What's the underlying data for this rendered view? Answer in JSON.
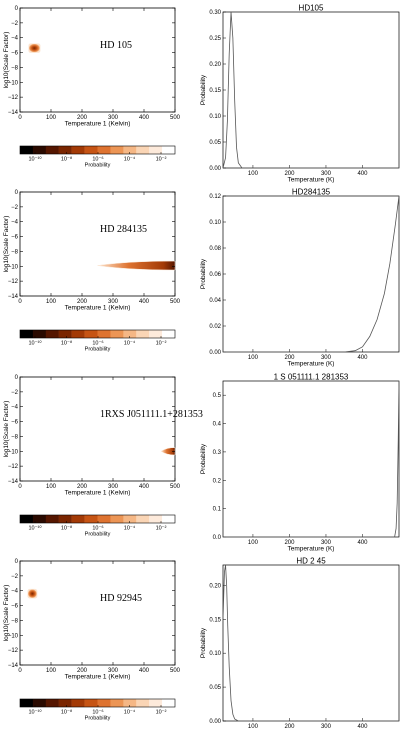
{
  "colorbar": {
    "label": "Probability",
    "ticks": [
      "10⁻¹⁰",
      "10⁻⁸",
      "10⁻⁶",
      "10⁻⁴",
      "10⁻²"
    ],
    "colors": [
      "#000000",
      "#2a0a00",
      "#551600",
      "#7a2500",
      "#a33a06",
      "#c65414",
      "#de7330",
      "#ec9555",
      "#f5b785",
      "#fad5b5",
      "#fdeadb",
      "#ffffff"
    ]
  },
  "chart_data": [
    {
      "type": "heatmap",
      "object_label": "HD 105",
      "xlabel": "Temperature 1 (Kelvin)",
      "ylabel": "log10(Scale Factor)",
      "xlim": [
        0,
        500
      ],
      "ylim": [
        -14,
        0
      ],
      "xticks": [
        0,
        100,
        200,
        300,
        400,
        500
      ],
      "yticks": [
        0,
        -2,
        -4,
        -6,
        -8,
        -10,
        -12,
        -14
      ],
      "blob": {
        "shape": "box",
        "t_min": 28,
        "t_max": 65,
        "s_min": -6.0,
        "s_max": -4.8
      }
    },
    {
      "type": "line",
      "title": "HD105",
      "xlabel": "Temperature (K)",
      "ylabel": "Probability",
      "xlim": [
        18,
        500
      ],
      "ylim": [
        0,
        0.3
      ],
      "xticks": [
        100,
        200,
        300,
        400
      ],
      "yticks": [
        0.0,
        0.05,
        0.1,
        0.15,
        0.2,
        0.25,
        0.3
      ],
      "series": [
        {
          "x": [
            18,
            25,
            30,
            35,
            40,
            45,
            50,
            55,
            60,
            70,
            500
          ],
          "y": [
            0,
            0.02,
            0.09,
            0.22,
            0.3,
            0.25,
            0.13,
            0.04,
            0.01,
            0,
            0
          ]
        }
      ]
    },
    {
      "type": "heatmap",
      "object_label": "HD 284135",
      "xlabel": "Temperature 1 (Kelvin)",
      "ylabel": "log10(Scale Factor)",
      "xlim": [
        0,
        500
      ],
      "ylim": [
        -14,
        0
      ],
      "xticks": [
        0,
        100,
        200,
        300,
        400,
        500
      ],
      "yticks": [
        0,
        -2,
        -4,
        -6,
        -8,
        -10,
        -12,
        -14
      ],
      "blob": {
        "shape": "streak",
        "t_min": 250,
        "t_max": 500,
        "s_min": -10.5,
        "s_max": -9.3
      }
    },
    {
      "type": "line",
      "title": "HD284135",
      "xlabel": "Temperature (K)",
      "ylabel": "Probability",
      "xlim": [
        18,
        500
      ],
      "ylim": [
        0,
        0.12
      ],
      "xticks": [
        100,
        200,
        300,
        400
      ],
      "yticks": [
        0.0,
        0.02,
        0.04,
        0.06,
        0.08,
        0.1,
        0.12
      ],
      "series": [
        {
          "x": [
            18,
            350,
            380,
            400,
            420,
            440,
            460,
            475,
            490,
            500
          ],
          "y": [
            0,
            0,
            0.001,
            0.004,
            0.012,
            0.025,
            0.045,
            0.068,
            0.098,
            0.12
          ]
        }
      ]
    },
    {
      "type": "heatmap",
      "object_label": "1RXS J051111.1+281353",
      "xlabel": "Temperature 1 (Kelvin)",
      "ylabel": "log10(Scale Factor)",
      "xlim": [
        0,
        500
      ],
      "ylim": [
        -14,
        0
      ],
      "xticks": [
        0,
        100,
        200,
        300,
        400,
        500
      ],
      "yticks": [
        0,
        -2,
        -4,
        -6,
        -8,
        -10,
        -12,
        -14
      ],
      "blob": {
        "shape": "streak",
        "t_min": 455,
        "t_max": 500,
        "s_min": -10.5,
        "s_max": -9.5
      }
    },
    {
      "type": "line",
      "title": "1  S 051111.1 281353",
      "xlabel": "Temperature (K)",
      "ylabel": "Probability",
      "xlim": [
        18,
        500
      ],
      "ylim": [
        0,
        0.55
      ],
      "xticks": [
        100,
        200,
        300,
        400
      ],
      "yticks": [
        0.0,
        0.1,
        0.2,
        0.3,
        0.4,
        0.5
      ],
      "series": [
        {
          "x": [
            18,
            488,
            492,
            495,
            498,
            500
          ],
          "y": [
            0,
            0,
            0.03,
            0.12,
            0.35,
            0.55
          ]
        }
      ]
    },
    {
      "type": "heatmap",
      "object_label": "HD 92945",
      "xlabel": "Temperature 1 (Kelvin)",
      "ylabel": "log10(Scale Factor)",
      "xlim": [
        0,
        500
      ],
      "ylim": [
        -14,
        0
      ],
      "xticks": [
        0,
        100,
        200,
        300,
        400,
        500
      ],
      "yticks": [
        0,
        -2,
        -4,
        -6,
        -8,
        -10,
        -12,
        -14
      ],
      "blob": {
        "shape": "box",
        "t_min": 25,
        "t_max": 55,
        "s_min": -5.0,
        "s_max": -3.8
      }
    },
    {
      "type": "line",
      "title": "HD 2 45",
      "xlabel": "Temperature (K)",
      "ylabel": "Probability",
      "xlim": [
        18,
        500
      ],
      "ylim": [
        0,
        0.23
      ],
      "xticks": [
        100,
        200,
        300,
        400
      ],
      "yticks": [
        0.0,
        0.05,
        0.1,
        0.15,
        0.2
      ],
      "series": [
        {
          "x": [
            18,
            22,
            25,
            28,
            31,
            35,
            40,
            45,
            50,
            60,
            500
          ],
          "y": [
            0.15,
            0.22,
            0.23,
            0.2,
            0.14,
            0.08,
            0.03,
            0.01,
            0.003,
            0,
            0
          ]
        }
      ]
    }
  ]
}
